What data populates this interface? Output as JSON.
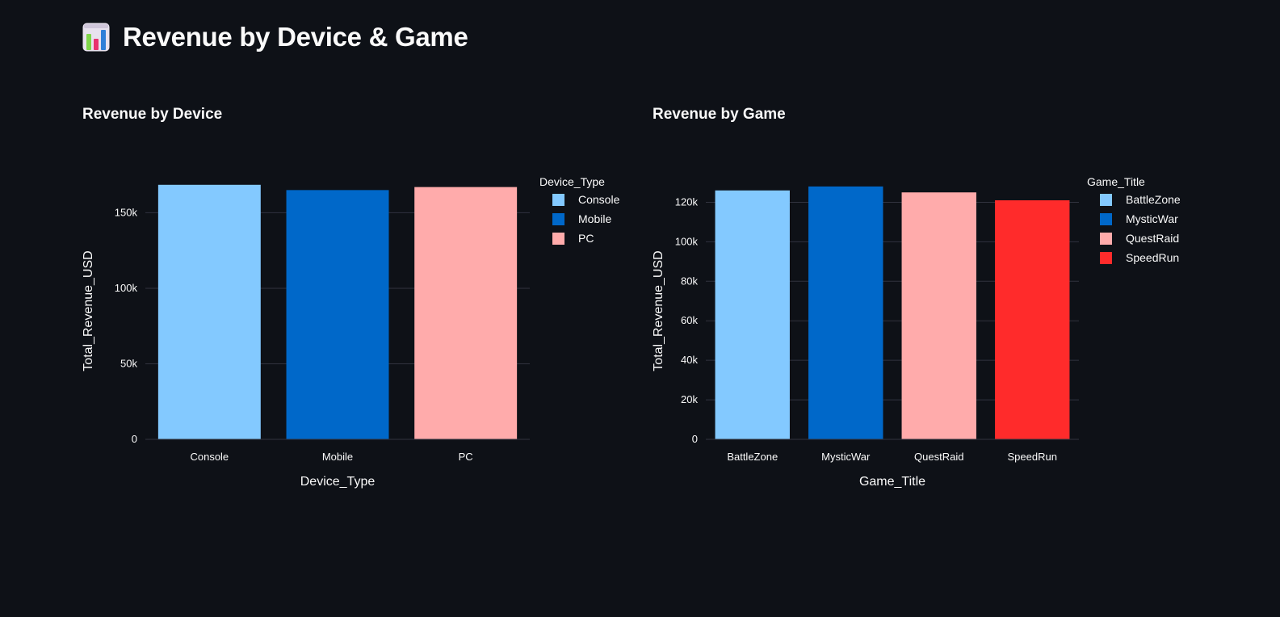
{
  "page": {
    "title": "Revenue by Device & Game",
    "icon": "bar-chart-emoji-icon"
  },
  "charts": [
    {
      "subtitle": "Revenue by Device"
    },
    {
      "subtitle": "Revenue by Game"
    }
  ],
  "chart_data": [
    {
      "type": "bar",
      "title": "Revenue by Device",
      "xlabel": "Device_Type",
      "ylabel": "Total_Revenue_USD",
      "categories": [
        "Console",
        "Mobile",
        "PC"
      ],
      "values": [
        168500,
        165000,
        167000
      ],
      "colors": [
        "#83c9ff",
        "#0068c9",
        "#ffabab"
      ],
      "ylim": [
        0,
        170000
      ],
      "yticks": [
        0,
        50000,
        100000,
        150000
      ],
      "ytick_labels": [
        "0",
        "50k",
        "100k",
        "150k"
      ],
      "grid": true,
      "legend": {
        "title": "Device_Type",
        "placement": "top-right",
        "entries": [
          "Console",
          "Mobile",
          "PC"
        ]
      }
    },
    {
      "type": "bar",
      "title": "Revenue by Game",
      "xlabel": "Game_Title",
      "ylabel": "Total_Revenue_USD",
      "categories": [
        "BattleZone",
        "MysticWar",
        "QuestRaid",
        "SpeedRun"
      ],
      "values": [
        126000,
        128000,
        125000,
        121000
      ],
      "colors": [
        "#83c9ff",
        "#0068c9",
        "#ffabab",
        "#ff2b2b"
      ],
      "ylim": [
        0,
        130000
      ],
      "yticks": [
        0,
        20000,
        40000,
        60000,
        80000,
        100000,
        120000
      ],
      "ytick_labels": [
        "0",
        "20k",
        "40k",
        "60k",
        "80k",
        "100k",
        "120k"
      ],
      "grid": true,
      "legend": {
        "title": "Game_Title",
        "placement": "top-right",
        "entries": [
          "BattleZone",
          "MysticWar",
          "QuestRaid",
          "SpeedRun"
        ]
      }
    }
  ]
}
